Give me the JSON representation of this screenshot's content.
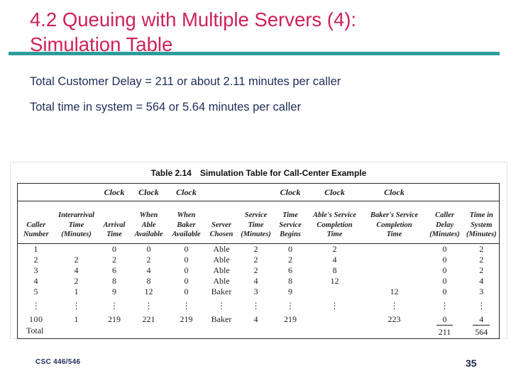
{
  "slide": {
    "title": {
      "line1": "4.2 Queuing with Multiple Servers (4):",
      "line2": "Simulation Table"
    },
    "body": {
      "line1": "Total Customer Delay = 211 or about 2.11 minutes per caller",
      "line2": "Total time in system = 564 or 5.64 minutes per caller"
    },
    "footer": {
      "course": "CSC 446/546",
      "page_number": "35"
    },
    "colors": {
      "title_red": "#CE2256",
      "rule_teal": "#2E9C9C",
      "body_navy": "#1F2C58",
      "table_ink": "#1f1f1f"
    }
  },
  "table": {
    "caption": {
      "label": "Table 2.14",
      "text": "Simulation Table for Call-Center Example"
    },
    "clock_row": [
      "",
      "",
      "Clock",
      "Clock",
      "Clock",
      "",
      "",
      "Clock",
      "Clock",
      "Clock",
      "",
      ""
    ],
    "headers": [
      "Caller\nNumber",
      "Interarrival\nTime\n(Minutes)",
      "Arrival\nTime",
      "When\nAble\nAvailable",
      "When\nBaker\nAvailable",
      "Server\nChosen",
      "Service\nTime\n(Minutes)",
      "Time\nService\nBegins",
      "Able's Service\nCompletion\nTime",
      "Baker's Service\nCompletion\nTime",
      "Caller\nDelay\n(Minutes)",
      "Time in\nSystem\n(Minutes)"
    ],
    "rows": [
      [
        "1",
        "",
        "0",
        "0",
        "0",
        "Able",
        "2",
        "0",
        "2",
        "",
        "0",
        "2"
      ],
      [
        "2",
        "2",
        "2",
        "2",
        "0",
        "Able",
        "2",
        "2",
        "4",
        "",
        "0",
        "2"
      ],
      [
        "3",
        "4",
        "6",
        "4",
        "0",
        "Able",
        "2",
        "6",
        "8",
        "",
        "0",
        "2"
      ],
      [
        "4",
        "2",
        "8",
        "8",
        "0",
        "Able",
        "4",
        "8",
        "12",
        "",
        "0",
        "4"
      ],
      [
        "5",
        "1",
        "9",
        "12",
        "0",
        "Baker",
        "3",
        "9",
        "",
        "12",
        "0",
        "3"
      ]
    ],
    "ellipsis": "⋮",
    "row_100": [
      "100",
      "1",
      "219",
      "221",
      "219",
      "Baker",
      "4",
      "219",
      "",
      "223",
      "0",
      "4"
    ],
    "total_row": {
      "label": "Total",
      "caller_delay_total": "211",
      "time_in_system_total": "564"
    }
  }
}
